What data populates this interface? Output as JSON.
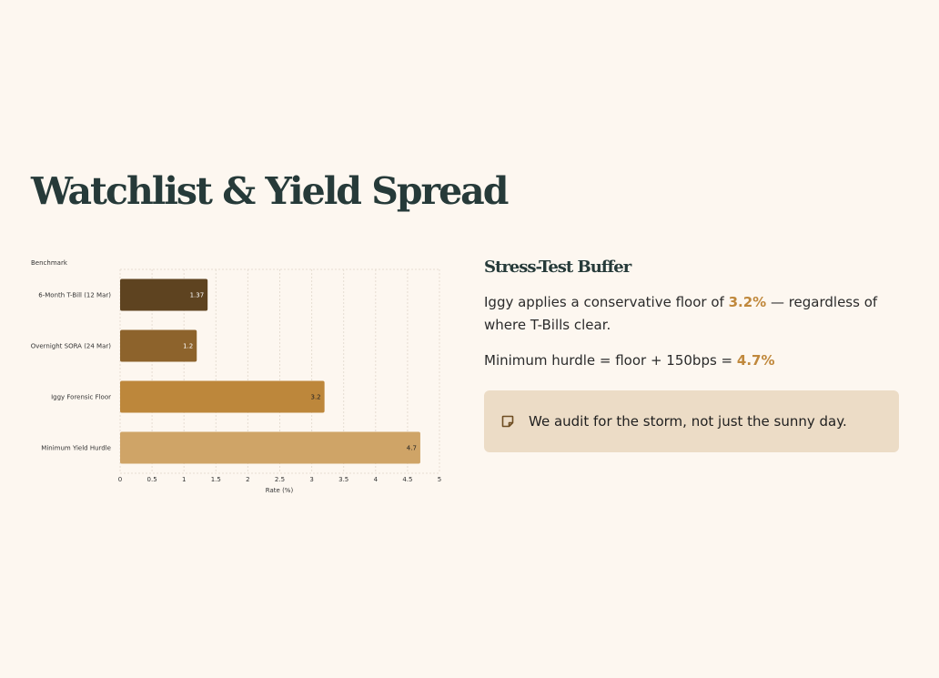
{
  "title": "Watchlist & Yield Spread",
  "chart_data": {
    "type": "bar",
    "orientation": "horizontal",
    "ylabel": "Benchmark",
    "xlabel": "Rate (%)",
    "categories": [
      "6-Month T-Bill (12 Mar)",
      "Overnight SORA (24 Mar)",
      "Iggy Forensic Floor",
      "Minimum Yield Hurdle"
    ],
    "values": [
      1.37,
      1.2,
      3.2,
      4.7
    ],
    "value_labels": [
      "1.37",
      "1.2",
      "3.2",
      "4.7"
    ],
    "colors": [
      "#5e4320",
      "#8d632c",
      "#bd873b",
      "#cfa467"
    ],
    "label_colors": [
      "#ffffff",
      "#ffffff",
      "#222222",
      "#222222"
    ],
    "xlim": [
      0,
      5
    ],
    "xticks": [
      0,
      0.5,
      1,
      1.5,
      2,
      2.5,
      3,
      3.5,
      4,
      4.5,
      5
    ],
    "xtick_labels": [
      "0",
      "0.5",
      "1",
      "1.5",
      "2",
      "2.5",
      "3",
      "3.5",
      "4",
      "4.5",
      "5"
    ],
    "grid": true
  },
  "side": {
    "heading": "Stress-Test Buffer",
    "p1_pre": "Iggy applies a conservative floor of ",
    "p1_hl": "3.2%",
    "p1_post": " — regardless of where T-Bills clear.",
    "p2_pre": "Minimum hurdle = floor + 150bps = ",
    "p2_hl": "4.7%",
    "note_icon": "sticky-note-icon",
    "note": "We audit for the storm, not just the sunny day."
  }
}
